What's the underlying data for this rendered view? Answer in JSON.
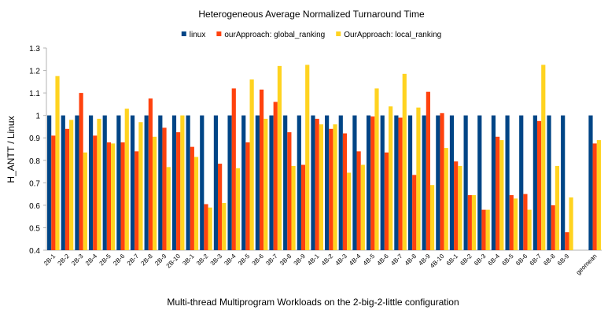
{
  "chart_data": {
    "type": "bar",
    "title": "Heterogeneous Average Normalized Turnaround Time",
    "x_label": "Multi-thread Multiprogram Workloads on the 2-big-2-little configuration",
    "y_label": "H_ANTT / Linux",
    "categories": [
      "2B-1",
      "2B-2",
      "2B-3",
      "2B-4",
      "2B-5",
      "2B-6",
      "2B-7",
      "2B-8",
      "2B-9",
      "2B-10",
      "3B-1",
      "3B-2",
      "3B-3",
      "3B-4",
      "3B-5",
      "3B-6",
      "3B-7",
      "3B-8",
      "3B-9",
      "4B-1",
      "4B-2",
      "4B-3",
      "4B-4",
      "4B-5",
      "4B-6",
      "4B-7",
      "4B-8",
      "4B-9",
      "4B-10",
      "6B-1",
      "6B-2",
      "6B-3",
      "6B-4",
      "6B-5",
      "6B-6",
      "6B-7",
      "6B-8",
      "6B-9",
      null,
      "geomean"
    ],
    "series": [
      {
        "name": "linux",
        "color": "#004586",
        "values": [
          1,
          1,
          1,
          1,
          1,
          1,
          1,
          1,
          1,
          1,
          1,
          1,
          1,
          1,
          1,
          1,
          1,
          1,
          1,
          1,
          1,
          1,
          1,
          1,
          1,
          1,
          1,
          1,
          1,
          1,
          1,
          1,
          1,
          1,
          1,
          1,
          1,
          1,
          null,
          1
        ]
      },
      {
        "name": "ourApproach: global_ranking",
        "color": "#ff420e",
        "values": [
          0.91,
          0.94,
          1.1,
          0.91,
          0.88,
          0.88,
          0.84,
          1.075,
          0.945,
          0.925,
          0.86,
          0.605,
          0.785,
          1.12,
          0.88,
          1.115,
          1.06,
          0.925,
          0.78,
          0.985,
          0.94,
          0.92,
          0.84,
          0.995,
          0.835,
          0.99,
          0.735,
          1.105,
          1.01,
          0.795,
          0.645,
          0.58,
          0.905,
          0.645,
          0.65,
          0.975,
          0.6,
          0.48,
          null,
          0.875
        ]
      },
      {
        "name": "OurApproach: local_ranking",
        "color": "#ffd320",
        "values": [
          1.175,
          0.98,
          0.835,
          0.985,
          0.875,
          1.03,
          0.97,
          0.905,
          0.77,
          1.0,
          0.815,
          0.59,
          0.61,
          0.765,
          1.16,
          0.985,
          1.22,
          0.775,
          1.225,
          0.96,
          0.96,
          0.745,
          0.78,
          1.12,
          1.04,
          1.185,
          1.035,
          0.69,
          0.855,
          0.775,
          0.645,
          0.58,
          0.89,
          0.63,
          0.58,
          1.225,
          0.775,
          0.635,
          null,
          0.89
        ]
      }
    ],
    "ylim": [
      0.4,
      1.3
    ],
    "yticks": [
      0.4,
      0.5,
      0.6,
      0.7,
      0.8,
      0.9,
      1,
      1.1,
      1.2,
      1.3
    ],
    "grid": false
  }
}
